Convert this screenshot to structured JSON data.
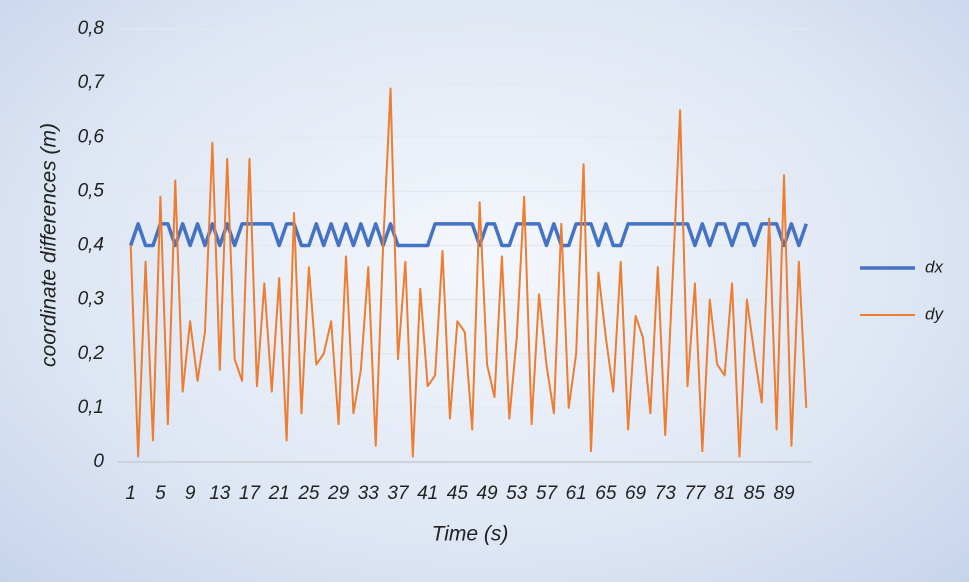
{
  "chart_data": {
    "type": "line",
    "x_label": "Time (s)",
    "y_label": "coordinate  differences (m)",
    "categories": [
      "1",
      null,
      null,
      null,
      "5",
      null,
      null,
      null,
      "9",
      null,
      null,
      null,
      "13",
      null,
      null,
      null,
      "17",
      null,
      null,
      null,
      "21",
      null,
      null,
      null,
      "25",
      null,
      null,
      null,
      "29",
      null,
      null,
      null,
      "33",
      null,
      null,
      null,
      "37",
      null,
      null,
      null,
      "41",
      null,
      null,
      null,
      "45",
      null,
      null,
      null,
      "49",
      null,
      null,
      null,
      "53",
      null,
      null,
      null,
      "57",
      null,
      null,
      null,
      "61",
      null,
      null,
      null,
      "65",
      null,
      null,
      null,
      "69",
      null,
      null,
      null,
      "73",
      null,
      null,
      null,
      "77",
      null,
      null,
      null,
      "81",
      null,
      null,
      null,
      "85",
      null,
      null,
      null,
      "89",
      null,
      null,
      null
    ],
    "series": [
      {
        "name": "dx",
        "color": "#4472c4",
        "width": 3.5,
        "values": [
          0.4,
          0.44,
          0.4,
          0.4,
          0.44,
          0.44,
          0.4,
          0.44,
          0.4,
          0.44,
          0.4,
          0.44,
          0.4,
          0.44,
          0.4,
          0.44,
          0.44,
          0.44,
          0.44,
          0.44,
          0.4,
          0.44,
          0.44,
          0.4,
          0.4,
          0.44,
          0.4,
          0.44,
          0.4,
          0.44,
          0.4,
          0.44,
          0.4,
          0.44,
          0.4,
          0.44,
          0.4,
          0.4,
          0.4,
          0.4,
          0.4,
          0.44,
          0.44,
          0.44,
          0.44,
          0.44,
          0.44,
          0.4,
          0.44,
          0.44,
          0.4,
          0.4,
          0.44,
          0.44,
          0.44,
          0.44,
          0.4,
          0.44,
          0.4,
          0.4,
          0.44,
          0.44,
          0.44,
          0.4,
          0.44,
          0.4,
          0.4,
          0.44,
          0.44,
          0.44,
          0.44,
          0.44,
          0.44,
          0.44,
          0.44,
          0.44,
          0.4,
          0.44,
          0.4,
          0.44,
          0.44,
          0.4,
          0.44,
          0.44,
          0.4,
          0.44,
          0.44,
          0.44,
          0.4,
          0.44,
          0.4,
          0.44
        ]
      },
      {
        "name": "dy",
        "color": "#ed7d31",
        "width": 2,
        "values": [
          0.4,
          0.01,
          0.37,
          0.04,
          0.49,
          0.07,
          0.52,
          0.13,
          0.26,
          0.15,
          0.24,
          0.59,
          0.17,
          0.56,
          0.19,
          0.15,
          0.56,
          0.14,
          0.33,
          0.13,
          0.34,
          0.04,
          0.46,
          0.09,
          0.36,
          0.18,
          0.2,
          0.26,
          0.07,
          0.38,
          0.09,
          0.17,
          0.36,
          0.03,
          0.4,
          0.69,
          0.19,
          0.37,
          0.01,
          0.32,
          0.14,
          0.16,
          0.39,
          0.08,
          0.26,
          0.24,
          0.06,
          0.48,
          0.18,
          0.12,
          0.38,
          0.08,
          0.23,
          0.49,
          0.07,
          0.31,
          0.18,
          0.09,
          0.44,
          0.1,
          0.2,
          0.55,
          0.02,
          0.35,
          0.23,
          0.13,
          0.37,
          0.06,
          0.27,
          0.23,
          0.09,
          0.36,
          0.05,
          0.34,
          0.65,
          0.14,
          0.33,
          0.02,
          0.3,
          0.18,
          0.16,
          0.33,
          0.01,
          0.3,
          0.2,
          0.11,
          0.45,
          0.06,
          0.53,
          0.03,
          0.37,
          0.1
        ]
      }
    ],
    "ylim": [
      0,
      0.8
    ],
    "yticks": [
      0,
      {
        "value": 0.1,
        "label": "0,1"
      },
      {
        "value": 0.2,
        "label": "0,2"
      },
      {
        "value": 0.3,
        "label": "0,3"
      },
      {
        "value": 0.4,
        "label": "0,4"
      },
      {
        "value": 0.5,
        "label": "0,5"
      },
      {
        "value": 0.6,
        "label": "0,6"
      },
      {
        "value": 0.7,
        "label": "0,7"
      },
      {
        "value": 0.8,
        "label": "0,8"
      }
    ],
    "grid": true,
    "legend": "right"
  }
}
